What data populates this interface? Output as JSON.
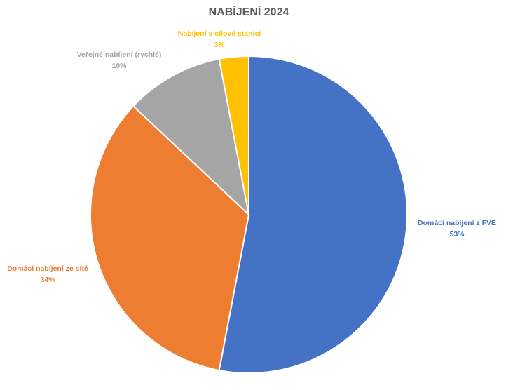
{
  "chart_data": {
    "type": "pie",
    "title": "NABÍJENÍ 2024",
    "categories": [
      "Domácí nabíjení z FVE",
      "Domácí nabíjení ze sítě",
      "Veřejné nabíjení (rychlé)",
      "Nabíjení v cílové stanici"
    ],
    "values": [
      53,
      34,
      10,
      3
    ],
    "value_labels": [
      "53%",
      "34%",
      "10%",
      "3%"
    ],
    "colors": [
      "#4472c4",
      "#ed7d31",
      "#a5a5a5",
      "#ffc000"
    ]
  }
}
